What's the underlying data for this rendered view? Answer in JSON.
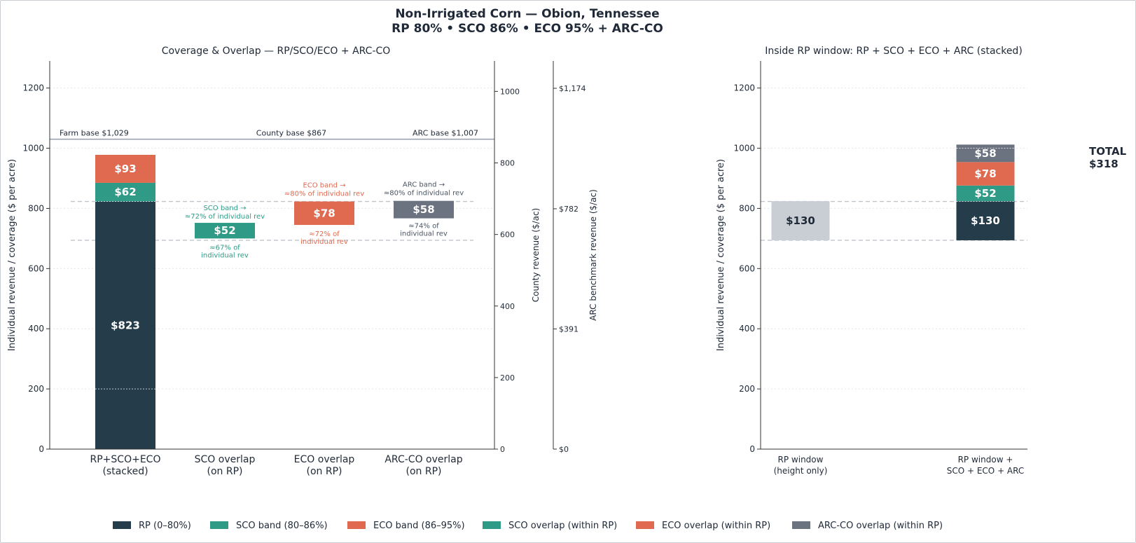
{
  "title": {
    "line1": "Non-Irrigated Corn — Obion, Tennessee",
    "line2": "RP 80%  •  SCO 86%  •  ECO 95%  + ARC-CO"
  },
  "colors": {
    "rp": "#253d4a",
    "sco": "#2f9b87",
    "eco": "#e06a50",
    "arc": "#6b7280",
    "rp_window": "#c9ced5",
    "axis": "#333333",
    "grid": "#e3e6ea",
    "base_line": "#9ca3af"
  },
  "chart_data": [
    {
      "type": "bar",
      "subtype": "stacked",
      "title": "Coverage & Overlap — RP/SCO/ECO + ARC-CO",
      "ylabel": "Individual revenue / coverage ($ per acre)",
      "ylim": [
        0,
        1290
      ],
      "yticks": [
        0,
        200,
        400,
        600,
        800,
        1000,
        1200
      ],
      "grid": true,
      "categories": [
        {
          "line1": "RP+SCO+ECO",
          "line2": "(stacked)"
        },
        {
          "line1": "SCO overlap",
          "line2": "(on RP)"
        },
        {
          "line1": "ECO overlap",
          "line2": "(on RP)"
        },
        {
          "line1": "ARC-CO overlap",
          "line2": "(on RP)"
        }
      ],
      "stacked_bar": [
        {
          "series": "rp",
          "bottom": 0,
          "value": 823,
          "label": "$823"
        },
        {
          "series": "sco",
          "bottom": 823,
          "value": 62,
          "label": "$62"
        },
        {
          "series": "eco",
          "bottom": 885,
          "value": 93,
          "label": "$93"
        }
      ],
      "overlap_bars": [
        {
          "category": 1,
          "series": "sco",
          "bottom": 700,
          "value": 52,
          "label": "$52",
          "note_above": [
            "SCO band →",
            "≈72% of individual rev"
          ],
          "note_below": [
            "≈67% of",
            "individual rev"
          ]
        },
        {
          "category": 2,
          "series": "eco",
          "bottom": 745,
          "value": 78,
          "label": "$78",
          "note_above": [
            "ECO band →",
            "≈80% of individual rev"
          ],
          "note_below": [
            "≈72% of",
            "individual rev"
          ]
        },
        {
          "category": 3,
          "series": "arc",
          "bottom": 767,
          "value": 58,
          "label": "$58",
          "note_above": [
            "ARC band →",
            "≈80% of individual rev"
          ],
          "note_below": [
            "≈74% of",
            "individual rev"
          ]
        }
      ],
      "reference_lines": {
        "base_y": 1030,
        "rp_top": 823,
        "rp_floor": 694,
        "dotted": [
          200,
          823
        ]
      },
      "base_labels": [
        "Farm base $1,029",
        "County base $867",
        "ARC base $1,007"
      ],
      "county_axis": {
        "label": "County revenue ($/ac)",
        "ylim": [
          0,
          1085
        ],
        "ticks": [
          0,
          200,
          400,
          600,
          800,
          1000
        ]
      },
      "arc_axis": {
        "label": "ARC benchmark revenue ($/ac)",
        "ticks": [
          {
            "value": 0,
            "label": "$0"
          },
          {
            "value": 391,
            "label": "$391"
          },
          {
            "value": 782,
            "label": "$782"
          },
          {
            "value": 1174,
            "label": "$1,174"
          }
        ]
      }
    },
    {
      "type": "bar",
      "subtype": "stacked",
      "title": "Inside RP window: RP + SCO + ECO + ARC (stacked)",
      "ylabel": "Individual revenue / coverage ($ per acre)",
      "ylim": [
        0,
        1290
      ],
      "yticks": [
        0,
        200,
        400,
        600,
        800,
        1000,
        1200
      ],
      "grid": true,
      "categories": [
        {
          "line1": "RP window",
          "line2": "(height only)"
        },
        {
          "line1": "RP window +",
          "line2": "SCO + ECO + ARC"
        }
      ],
      "bars": [
        {
          "category": 0,
          "segments": [
            {
              "series": "rp_window",
              "bottom": 694,
              "value": 130,
              "label": "$130"
            }
          ]
        },
        {
          "category": 1,
          "segments": [
            {
              "series": "rp",
              "bottom": 694,
              "value": 130,
              "label": "$130"
            },
            {
              "series": "sco",
              "bottom": 824,
              "value": 52,
              "label": "$52"
            },
            {
              "series": "eco",
              "bottom": 876,
              "value": 78,
              "label": "$78"
            },
            {
              "series": "arc",
              "bottom": 954,
              "value": 58,
              "label": "$58"
            }
          ]
        }
      ],
      "reference_lines": {
        "rp_top": 823,
        "rp_floor": 694
      },
      "total": {
        "line1": "TOTAL",
        "line2": "$318"
      }
    }
  ],
  "legend": [
    {
      "label": "RP (0–80%)",
      "color": "#253d4a"
    },
    {
      "label": "SCO band (80–86%)",
      "color": "#2f9b87"
    },
    {
      "label": "ECO band (86–95%)",
      "color": "#e06a50"
    },
    {
      "label": "SCO overlap (within RP)",
      "color": "#2f9b87"
    },
    {
      "label": "ECO overlap (within RP)",
      "color": "#e06a50"
    },
    {
      "label": "ARC-CO overlap (within RP)",
      "color": "#6b7280"
    }
  ]
}
